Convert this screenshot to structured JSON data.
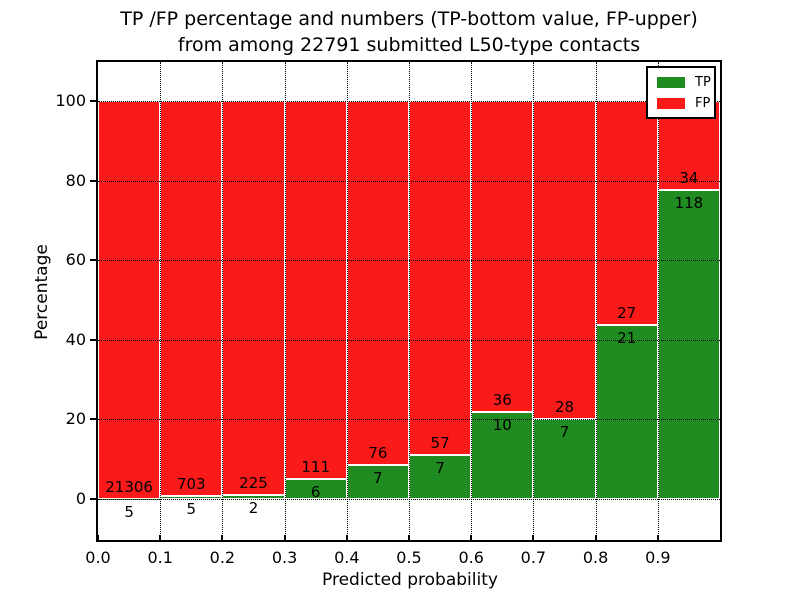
{
  "chart": {
    "title_line1": "TP /FP percentage and numbers (TP-bottom value, FP-upper)",
    "title_line2": "from among 22791 submitted L50-type contacts",
    "xlabel": "Predicted probability",
    "ylabel": "Percentage",
    "legend": {
      "tp_label": "TP",
      "fp_label": "FP"
    },
    "colors": {
      "tp_green": "#1f8b20",
      "fp_red": "#fb1a1a",
      "bar_edge": "#ffffff",
      "grid": "#000000"
    }
  },
  "chart_data": {
    "type": "bar",
    "stacked": true,
    "title": "TP /FP percentage and numbers (TP-bottom value, FP-upper) from among 22791 submitted L50-type contacts",
    "xlabel": "Predicted probability",
    "ylabel": "Percentage",
    "total_submitted_contacts": 22791,
    "bin_start": [
      0.0,
      0.1,
      0.2,
      0.3,
      0.4,
      0.5,
      0.6,
      0.7,
      0.8,
      0.9
    ],
    "bin_width": 0.1,
    "series": [
      {
        "name": "TP",
        "color": "#1f8b20",
        "counts": [
          5,
          5,
          2,
          6,
          7,
          7,
          10,
          7,
          21,
          118
        ]
      },
      {
        "name": "FP",
        "color": "#fb1a1a",
        "counts": [
          21306,
          703,
          225,
          111,
          76,
          57,
          36,
          28,
          27,
          34
        ]
      }
    ],
    "tp_percent_of_bin": [
      0.02,
      0.71,
      0.88,
      5.13,
      8.43,
      10.94,
      21.74,
      20.0,
      43.75,
      77.63
    ],
    "bar_total_percent": 100,
    "xticks": [
      "0.0",
      "0.1",
      "0.2",
      "0.3",
      "0.4",
      "0.5",
      "0.6",
      "0.7",
      "0.8",
      "0.9"
    ],
    "yticks": [
      0,
      20,
      40,
      60,
      80,
      100
    ],
    "xlim": [
      0.0,
      1.0
    ],
    "ylim": [
      -10,
      110
    ],
    "grid": true,
    "grid_style": "dotted",
    "legend_position": "upper right"
  }
}
